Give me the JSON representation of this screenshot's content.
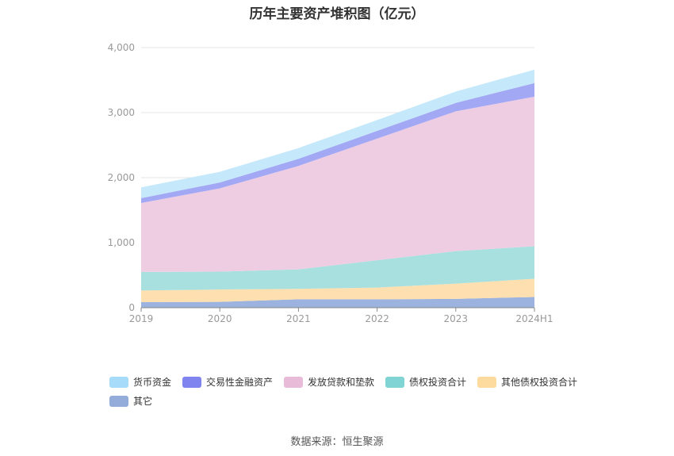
{
  "chart_data": {
    "type": "area",
    "stacked": true,
    "title": "历年主要资产堆积图（亿元）",
    "x": [
      "2019",
      "2020",
      "2021",
      "2022",
      "2023",
      "2024H1"
    ],
    "ylim": [
      0,
      4000
    ],
    "yticks": [
      0,
      1000,
      2000,
      3000,
      4000
    ],
    "ytick_labels": [
      "0",
      "1,000",
      "2,000",
      "3,000",
      "4,000"
    ],
    "grid": true,
    "legend_position": "bottom-left",
    "series": [
      {
        "name": "其它",
        "color": "#9bb3de",
        "values": [
          85,
          90,
          130,
          130,
          135,
          165
        ]
      },
      {
        "name": "其他债权投资合计",
        "color": "#fddfb0",
        "values": [
          180,
          190,
          160,
          180,
          235,
          280
        ]
      },
      {
        "name": "债权投资合计",
        "color": "#a8e0e0",
        "values": [
          285,
          275,
          300,
          420,
          500,
          500
        ]
      },
      {
        "name": "发放贷款和垫款",
        "color": "#eecde2",
        "values": [
          1060,
          1280,
          1590,
          1870,
          2150,
          2300
        ]
      },
      {
        "name": "交易性金融资产",
        "color": "#a3a8f5",
        "values": [
          75,
          90,
          110,
          120,
          130,
          210
        ]
      },
      {
        "name": "货币资金",
        "color": "#c5e9fa",
        "values": [
          165,
          165,
          165,
          165,
          175,
          205
        ]
      }
    ]
  },
  "legend": {
    "items": [
      {
        "label": "货币资金",
        "color": "#a6dcfa"
      },
      {
        "label": "交易性金融资产",
        "color": "#7f84ef"
      },
      {
        "label": "发放贷款和垫款",
        "color": "#e8bcd8"
      },
      {
        "label": "债权投资合计",
        "color": "#80d4d4"
      },
      {
        "label": "其他债权投资合计",
        "color": "#fddb9f"
      },
      {
        "label": "其它",
        "color": "#93acd9"
      }
    ]
  },
  "source": "数据来源：恒生聚源"
}
